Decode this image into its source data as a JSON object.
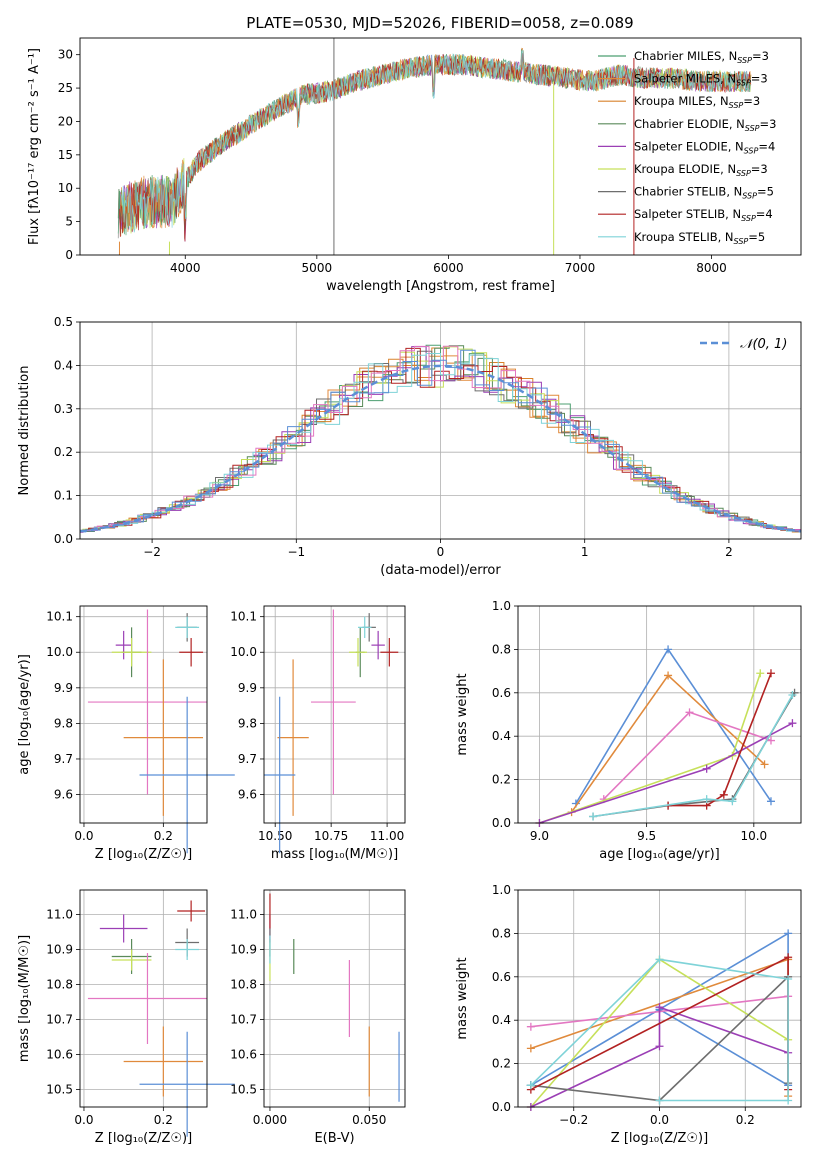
{
  "figure": {
    "title": "PLATE=0530, MJD=52026, FIBERID=0058, z=0.089",
    "colors": {
      "chabrier_miles": "#4c9f70",
      "salpeter_miles": "#e08a3c",
      "kroupa_miles": "#d9822b",
      "chabrier_elodie": "#5a8a5a",
      "salpeter_elodie": "#9b3fb5",
      "kroupa_elodie": "#c6e05a",
      "chabrier_stelib": "#6e6e6e",
      "salpeter_stelib": "#b22222",
      "kroupa_stelib": "#7fd3d8",
      "normal_curve": "#5b8fd6"
    }
  },
  "chart_data": [
    {
      "id": "spectrum",
      "type": "line",
      "title": "PLATE=0530, MJD=52026, FIBERID=0058, z=0.089",
      "xlabel": "wavelength [Angstrom, rest frame]",
      "ylabel": "Flux [fλ10⁻¹⁷ erg cm⁻² s⁻¹ A⁻¹]",
      "xlim": [
        3200,
        8680
      ],
      "ylim": [
        0,
        32.5
      ],
      "xticks": [
        4000,
        5000,
        6000,
        7000,
        8000
      ],
      "yticks": [
        0,
        5,
        10,
        15,
        20,
        25,
        30
      ],
      "grid": false,
      "legend_position": "top-right",
      "continuum": {
        "x": [
          3500,
          3700,
          3900,
          4000,
          4100,
          4300,
          4500,
          4700,
          4900,
          5100,
          5300,
          5500,
          5700,
          5900,
          6100,
          6300,
          6500,
          6700,
          6900,
          7100,
          7300,
          7500,
          7700,
          7900,
          8100,
          8300
        ],
        "y": [
          6.5,
          8,
          8,
          11,
          14,
          17,
          19.5,
          22,
          24,
          24.5,
          26,
          27,
          28,
          28.5,
          28.5,
          28,
          27.5,
          27,
          26.5,
          26,
          27,
          26.5,
          26.5,
          26,
          26,
          26
        ]
      },
      "series": [
        {
          "name": "Chabrier MILES, N_SSP=3",
          "color_key": "chabrier_miles"
        },
        {
          "name": "Salpeter MILES, N_SSP=3",
          "color_key": "salpeter_miles"
        },
        {
          "name": "Kroupa MILES, N_SSP=3",
          "color_key": "kroupa_miles"
        },
        {
          "name": "Chabrier ELODIE, N_SSP=3",
          "color_key": "chabrier_elodie"
        },
        {
          "name": "Salpeter ELODIE, N_SSP=4",
          "color_key": "salpeter_elodie"
        },
        {
          "name": "Kroupa ELODIE, N_SSP=3",
          "color_key": "kroupa_elodie"
        },
        {
          "name": "Chabrier STELIB, N_SSP=5",
          "color_key": "chabrier_stelib"
        },
        {
          "name": "Salpeter STELIB, N_SSP=4",
          "color_key": "salpeter_stelib"
        },
        {
          "name": "Kroupa STELIB, N_SSP=5",
          "color_key": "kroupa_stelib"
        }
      ]
    },
    {
      "id": "residuals",
      "type": "histogram",
      "xlabel": "(data-model)/error",
      "ylabel": "Normed distribution",
      "xlim": [
        -2.5,
        2.5
      ],
      "ylim": [
        0,
        0.5
      ],
      "xticks": [
        -2,
        -1,
        0,
        1,
        2
      ],
      "yticks": [
        0.0,
        0.1,
        0.2,
        0.3,
        0.4,
        0.5
      ],
      "grid": true,
      "legend_position": "top-right",
      "legend_label": "𝒩(0, 1)",
      "bin_width": 0.1
    },
    {
      "id": "age_vs_Z",
      "type": "scatter",
      "xlabel": "Z [log₁₀(Z/Z☉)]",
      "ylabel": "age  [log₁₀(age/yr)]",
      "xlim": [
        -0.01,
        0.31
      ],
      "ylim": [
        9.52,
        10.13
      ],
      "xticks": [
        0.0,
        0.2
      ],
      "yticks": [
        9.6,
        9.7,
        9.8,
        9.9,
        10.0,
        10.1
      ],
      "grid": true,
      "points": [
        {
          "x": 0.12,
          "xerr": 0.025,
          "y": 10.0,
          "yerr": 0.07,
          "color_key": "chabrier_elodie"
        },
        {
          "x": 0.1,
          "xerr": 0.02,
          "y": 10.02,
          "yerr": 0.04,
          "color_key": "salpeter_elodie"
        },
        {
          "x": 0.12,
          "xerr": 0.05,
          "y": 10.0,
          "yerr": 0.04,
          "color_key": "kroupa_elodie"
        },
        {
          "x": 0.26,
          "xerr": 0.025,
          "y": 10.07,
          "yerr": 0.04,
          "color_key": "chabrier_stelib"
        },
        {
          "x": 0.27,
          "xerr": 0.03,
          "y": 10.0,
          "yerr": 0.04,
          "color_key": "salpeter_stelib"
        },
        {
          "x": 0.26,
          "xerr": 0.03,
          "y": 10.07,
          "yerr": 0.03,
          "color_key": "kroupa_stelib"
        },
        {
          "x": 0.16,
          "xerr": 0.15,
          "y": 9.86,
          "yerr": 0.26,
          "color_key": "pink"
        },
        {
          "x": 0.2,
          "xerr": 0.1,
          "y": 9.76,
          "yerr": 0.22,
          "color_key": "salpeter_miles"
        },
        {
          "x": 0.26,
          "xerr": 0.12,
          "y": 9.655,
          "yerr": 0.22,
          "color_key": "normal_curve"
        }
      ]
    },
    {
      "id": "age_vs_mass",
      "type": "scatter",
      "xlabel": "mass [log₁₀(M/M☉)]",
      "ylabel": "",
      "xlim": [
        10.45,
        11.08
      ],
      "ylim": [
        9.52,
        10.13
      ],
      "xticks": [
        10.5,
        10.75,
        11.0
      ],
      "yticks": [
        9.6,
        9.7,
        9.8,
        9.9,
        10.0,
        10.1
      ],
      "grid": true,
      "points": [
        {
          "x": 10.88,
          "xerr": 0.02,
          "y": 10.0,
          "yerr": 0.07,
          "color_key": "chabrier_elodie"
        },
        {
          "x": 10.96,
          "xerr": 0.03,
          "y": 10.02,
          "yerr": 0.04,
          "color_key": "salpeter_elodie"
        },
        {
          "x": 10.87,
          "xerr": 0.04,
          "y": 10.0,
          "yerr": 0.04,
          "color_key": "kroupa_elodie"
        },
        {
          "x": 10.92,
          "xerr": 0.03,
          "y": 10.07,
          "yerr": 0.04,
          "color_key": "chabrier_stelib"
        },
        {
          "x": 11.01,
          "xerr": 0.04,
          "y": 10.0,
          "yerr": 0.04,
          "color_key": "salpeter_stelib"
        },
        {
          "x": 10.9,
          "xerr": 0.03,
          "y": 10.07,
          "yerr": 0.03,
          "color_key": "kroupa_stelib"
        },
        {
          "x": 10.76,
          "xerr": 0.1,
          "y": 9.86,
          "yerr": 0.26,
          "color_key": "pink"
        },
        {
          "x": 10.58,
          "xerr": 0.07,
          "y": 9.76,
          "yerr": 0.22,
          "color_key": "salpeter_miles"
        },
        {
          "x": 10.52,
          "xerr": 0.07,
          "y": 9.655,
          "yerr": 0.22,
          "color_key": "normal_curve"
        }
      ]
    },
    {
      "id": "mass_weight_vs_age",
      "type": "line",
      "xlabel": "age  [log₁₀(age/yr)]",
      "ylabel": "mass weight",
      "xlim": [
        8.9,
        10.22
      ],
      "ylim": [
        0,
        1
      ],
      "xticks": [
        9.0,
        9.5,
        10.0
      ],
      "yticks": [
        0.0,
        0.2,
        0.4,
        0.6,
        0.8,
        1.0
      ],
      "grid": true,
      "series": [
        {
          "color_key": "normal_curve",
          "x": [
            9.17,
            9.6,
            10.08
          ],
          "y": [
            0.09,
            0.8,
            0.1
          ]
        },
        {
          "color_key": "salpeter_miles",
          "x": [
            9.15,
            9.6,
            10.05
          ],
          "y": [
            0.05,
            0.68,
            0.27
          ]
        },
        {
          "color_key": "pink",
          "x": [
            9.3,
            9.7,
            10.08
          ],
          "y": [
            0.11,
            0.51,
            0.38
          ]
        },
        {
          "color_key": "kroupa_elodie",
          "x": [
            9.0,
            9.9,
            10.03
          ],
          "y": [
            0.0,
            0.31,
            0.69
          ]
        },
        {
          "color_key": "salpeter_elodie",
          "x": [
            9.0,
            9.78,
            10.18
          ],
          "y": [
            0.0,
            0.25,
            0.46
          ]
        },
        {
          "color_key": "chabrier_stelib",
          "x": [
            9.25,
            9.6,
            9.9,
            10.19
          ],
          "y": [
            0.03,
            0.08,
            0.11,
            0.6
          ]
        },
        {
          "color_key": "salpeter_stelib",
          "x": [
            9.6,
            9.78,
            9.86,
            10.08
          ],
          "y": [
            0.08,
            0.08,
            0.13,
            0.69
          ]
        },
        {
          "color_key": "kroupa_stelib",
          "x": [
            9.25,
            9.78,
            9.9,
            10.18
          ],
          "y": [
            0.03,
            0.11,
            0.1,
            0.59
          ]
        }
      ]
    },
    {
      "id": "mass_vs_Z",
      "type": "scatter",
      "xlabel": "Z [log₁₀(Z/Z☉)]",
      "ylabel": "mass [log₁₀(M/M☉)]",
      "xlim": [
        -0.01,
        0.31
      ],
      "ylim": [
        10.45,
        11.07
      ],
      "xticks": [
        0.0,
        0.2
      ],
      "yticks": [
        10.5,
        10.6,
        10.7,
        10.8,
        10.9,
        11.0
      ],
      "grid": true,
      "points": [
        {
          "x": 0.12,
          "xerr": 0.05,
          "y": 10.88,
          "yerr": 0.05,
          "color_key": "chabrier_elodie"
        },
        {
          "x": 0.1,
          "xerr": 0.06,
          "y": 10.96,
          "yerr": 0.04,
          "color_key": "salpeter_elodie"
        },
        {
          "x": 0.12,
          "xerr": 0.05,
          "y": 10.87,
          "yerr": 0.03,
          "color_key": "kroupa_elodie"
        },
        {
          "x": 0.26,
          "xerr": 0.03,
          "y": 10.92,
          "yerr": 0.04,
          "color_key": "chabrier_stelib"
        },
        {
          "x": 0.27,
          "xerr": 0.035,
          "y": 11.01,
          "yerr": 0.03,
          "color_key": "salpeter_stelib"
        },
        {
          "x": 0.26,
          "xerr": 0.03,
          "y": 10.9,
          "yerr": 0.03,
          "color_key": "kroupa_stelib"
        },
        {
          "x": 0.16,
          "xerr": 0.15,
          "y": 10.76,
          "yerr": 0.13,
          "color_key": "pink"
        },
        {
          "x": 0.2,
          "xerr": 0.1,
          "y": 10.58,
          "yerr": 0.1,
          "color_key": "salpeter_miles"
        },
        {
          "x": 0.26,
          "xerr": 0.12,
          "y": 10.515,
          "yerr": 0.15,
          "color_key": "normal_curve"
        }
      ]
    },
    {
      "id": "mass_vs_EBV",
      "type": "scatter",
      "xlabel": "E(B-V)",
      "ylabel": "",
      "xlim": [
        -0.003,
        0.068
      ],
      "ylim": [
        10.45,
        11.07
      ],
      "xticks": [
        0.0,
        0.05
      ],
      "xticklabels": [
        "0.000",
        "0.050"
      ],
      "yticks": [
        10.5,
        10.6,
        10.7,
        10.8,
        10.9,
        11.0
      ],
      "grid": true,
      "points": [
        {
          "x": 0.012,
          "xerr": 0,
          "y": 10.88,
          "yerr": 0.05,
          "color_key": "chabrier_elodie"
        },
        {
          "x": 0.0,
          "xerr": 0,
          "y": 10.96,
          "yerr": 0.04,
          "color_key": "salpeter_elodie"
        },
        {
          "x": 0.0,
          "xerr": 0,
          "y": 10.87,
          "yerr": 0.06,
          "color_key": "kroupa_elodie"
        },
        {
          "x": 0.0,
          "xerr": 0,
          "y": 10.92,
          "yerr": 0.04,
          "color_key": "chabrier_stelib"
        },
        {
          "x": 0.0,
          "xerr": 0,
          "y": 11.01,
          "yerr": 0.05,
          "color_key": "salpeter_stelib"
        },
        {
          "x": 0.0,
          "xerr": 0,
          "y": 10.9,
          "yerr": 0.04,
          "color_key": "kroupa_stelib"
        },
        {
          "x": 0.04,
          "xerr": 0,
          "y": 10.76,
          "yerr": 0.11,
          "color_key": "pink"
        },
        {
          "x": 0.05,
          "xerr": 0,
          "y": 10.58,
          "yerr": 0.1,
          "color_key": "salpeter_miles"
        },
        {
          "x": 0.065,
          "xerr": 0,
          "y": 10.565,
          "yerr": 0.1,
          "color_key": "normal_curve"
        }
      ]
    },
    {
      "id": "mass_weight_vs_Z",
      "type": "line",
      "xlabel": "Z [log₁₀(Z/Z☉)]",
      "ylabel": "mass weight",
      "xlim": [
        -0.33,
        0.33
      ],
      "ylim": [
        0,
        1
      ],
      "xticks": [
        -0.2,
        0.0,
        0.2
      ],
      "xticklabels": [
        "−0.2",
        "0.0",
        "0.2"
      ],
      "yticks": [
        0.0,
        0.2,
        0.4,
        0.6,
        0.8,
        1.0
      ],
      "grid": true,
      "series": [
        {
          "color_key": "normal_curve",
          "x": [
            -0.3,
            0.3,
            0.3,
            0.0,
            -0.3
          ],
          "y": [
            0.1,
            0.8,
            0.1,
            0.45,
            0.1
          ]
        },
        {
          "color_key": "salpeter_miles",
          "x": [
            -0.3,
            0.3,
            0.3
          ],
          "y": [
            0.27,
            0.68,
            0.05
          ]
        },
        {
          "color_key": "pink",
          "x": [
            -0.3,
            0.3
          ],
          "y": [
            0.37,
            0.51
          ]
        },
        {
          "color_key": "kroupa_elodie",
          "x": [
            -0.3,
            0.0,
            0.3
          ],
          "y": [
            0.0,
            0.68,
            0.31
          ]
        },
        {
          "color_key": "salpeter_elodie",
          "x": [
            -0.3,
            0.0,
            0.0,
            0.3
          ],
          "y": [
            0.0,
            0.28,
            0.46,
            0.25
          ]
        },
        {
          "color_key": "chabrier_stelib",
          "x": [
            -0.3,
            0.0,
            0.3,
            0.3
          ],
          "y": [
            0.1,
            0.03,
            0.6,
            0.11
          ]
        },
        {
          "color_key": "salpeter_stelib",
          "x": [
            -0.3,
            0.3,
            0.3
          ],
          "y": [
            0.08,
            0.69,
            0.08
          ]
        },
        {
          "color_key": "kroupa_stelib",
          "x": [
            -0.3,
            0.0,
            0.3,
            0.3,
            0.0
          ],
          "y": [
            0.1,
            0.68,
            0.59,
            0.03,
            0.03
          ]
        }
      ]
    }
  ],
  "extra_colors": {
    "pink": "#e377c2"
  }
}
